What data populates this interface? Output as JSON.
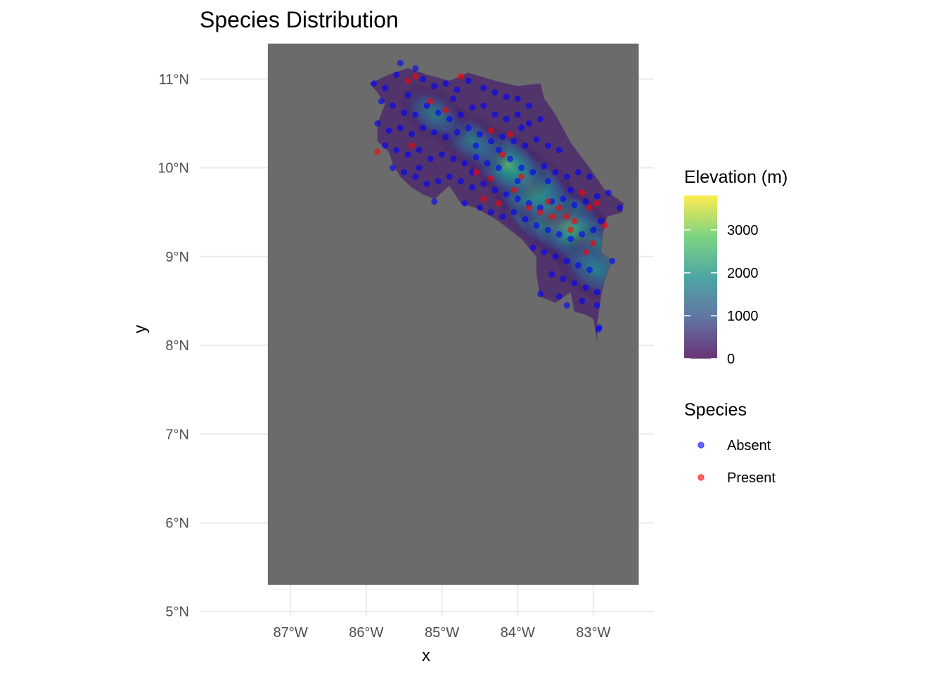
{
  "chart_data": {
    "type": "scatter",
    "title": "Species Distribution",
    "xlabel": "x",
    "ylabel": "y",
    "xlim": [
      -88.2,
      -82.2
    ],
    "ylim": [
      4.95,
      11.4
    ],
    "x_ticks": [
      {
        "value": -87,
        "label": "87°W"
      },
      {
        "value": -86,
        "label": "86°W"
      },
      {
        "value": -85,
        "label": "85°W"
      },
      {
        "value": -84,
        "label": "84°W"
      },
      {
        "value": -83,
        "label": "83°W"
      }
    ],
    "y_ticks": [
      {
        "value": 5,
        "label": "5°N"
      },
      {
        "value": 6,
        "label": "6°N"
      },
      {
        "value": 7,
        "label": "7°N"
      },
      {
        "value": 8,
        "label": "8°N"
      },
      {
        "value": 9,
        "label": "9°N"
      },
      {
        "value": 10,
        "label": "10°N"
      },
      {
        "value": 11,
        "label": "11°N"
      }
    ],
    "raster": {
      "name": "Elevation (m)",
      "extent": {
        "xmin": -87.3,
        "xmax": -82.4,
        "ymin": 5.3,
        "ymax": 11.4
      },
      "na_color": "#6b6b6b",
      "range": [
        0,
        3800
      ],
      "land_outline": [
        [
          -85.95,
          10.95
        ],
        [
          -85.7,
          11.05
        ],
        [
          -85.45,
          11.12
        ],
        [
          -85.2,
          11.05
        ],
        [
          -84.9,
          10.98
        ],
        [
          -84.65,
          11.07
        ],
        [
          -84.3,
          10.98
        ],
        [
          -84.0,
          10.92
        ],
        [
          -83.7,
          10.95
        ],
        [
          -83.65,
          10.78
        ],
        [
          -83.5,
          10.6
        ],
        [
          -83.3,
          10.28
        ],
        [
          -83.05,
          10.0
        ],
        [
          -82.85,
          9.75
        ],
        [
          -82.6,
          9.6
        ],
        [
          -82.62,
          9.5
        ],
        [
          -82.82,
          9.45
        ],
        [
          -82.88,
          9.25
        ],
        [
          -82.9,
          9.05
        ],
        [
          -82.75,
          8.95
        ],
        [
          -82.85,
          8.75
        ],
        [
          -82.9,
          8.55
        ],
        [
          -82.95,
          8.25
        ],
        [
          -82.95,
          8.05
        ],
        [
          -83.0,
          8.3
        ],
        [
          -83.12,
          8.35
        ],
        [
          -83.25,
          8.38
        ],
        [
          -83.3,
          8.6
        ],
        [
          -83.5,
          8.48
        ],
        [
          -83.7,
          8.55
        ],
        [
          -83.75,
          8.8
        ],
        [
          -83.75,
          9.0
        ],
        [
          -83.95,
          9.2
        ],
        [
          -84.25,
          9.4
        ],
        [
          -84.55,
          9.55
        ],
        [
          -84.75,
          9.6
        ],
        [
          -84.9,
          9.8
        ],
        [
          -85.1,
          9.65
        ],
        [
          -85.25,
          9.7
        ],
        [
          -85.4,
          9.78
        ],
        [
          -85.55,
          9.9
        ],
        [
          -85.65,
          10.05
        ],
        [
          -85.7,
          10.18
        ],
        [
          -85.85,
          10.3
        ],
        [
          -85.85,
          10.5
        ],
        [
          -85.75,
          10.72
        ],
        [
          -85.85,
          10.85
        ]
      ],
      "peaks": [
        {
          "x": -83.6,
          "y": 9.5,
          "elev": 3800
        },
        {
          "x": -83.35,
          "y": 9.35,
          "elev": 3400
        },
        {
          "x": -83.1,
          "y": 9.15,
          "elev": 3100
        },
        {
          "x": -83.85,
          "y": 9.8,
          "elev": 3300
        },
        {
          "x": -84.15,
          "y": 10.05,
          "elev": 2600
        },
        {
          "x": -84.6,
          "y": 10.3,
          "elev": 2000
        },
        {
          "x": -85.1,
          "y": 10.6,
          "elev": 1700
        },
        {
          "x": -82.75,
          "y": 8.95,
          "elev": 2700
        },
        {
          "x": -83.0,
          "y": 8.85,
          "elev": 2200
        }
      ]
    },
    "series": [
      {
        "name": "Absent",
        "color": "#0000ff",
        "points": [
          [
            -85.9,
            10.95
          ],
          [
            -85.75,
            10.9
          ],
          [
            -85.6,
            11.05
          ],
          [
            -85.55,
            11.18
          ],
          [
            -85.35,
            11.12
          ],
          [
            -85.25,
            11.0
          ],
          [
            -85.1,
            10.92
          ],
          [
            -84.95,
            10.95
          ],
          [
            -84.8,
            10.88
          ],
          [
            -84.65,
            10.98
          ],
          [
            -84.45,
            10.9
          ],
          [
            -84.3,
            10.85
          ],
          [
            -84.15,
            10.8
          ],
          [
            -84.0,
            10.78
          ],
          [
            -83.85,
            10.7
          ],
          [
            -85.8,
            10.75
          ],
          [
            -85.65,
            10.7
          ],
          [
            -85.5,
            10.62
          ],
          [
            -85.35,
            10.6
          ],
          [
            -85.2,
            10.7
          ],
          [
            -85.05,
            10.62
          ],
          [
            -84.9,
            10.55
          ],
          [
            -84.75,
            10.6
          ],
          [
            -84.6,
            10.68
          ],
          [
            -84.45,
            10.7
          ],
          [
            -84.3,
            10.6
          ],
          [
            -84.15,
            10.55
          ],
          [
            -84.0,
            10.6
          ],
          [
            -83.85,
            10.5
          ],
          [
            -83.7,
            10.55
          ],
          [
            -85.85,
            10.5
          ],
          [
            -85.7,
            10.42
          ],
          [
            -85.55,
            10.45
          ],
          [
            -85.4,
            10.38
          ],
          [
            -85.25,
            10.45
          ],
          [
            -85.1,
            10.4
          ],
          [
            -84.95,
            10.35
          ],
          [
            -84.8,
            10.4
          ],
          [
            -84.65,
            10.45
          ],
          [
            -84.5,
            10.38
          ],
          [
            -84.35,
            10.3
          ],
          [
            -84.2,
            10.35
          ],
          [
            -84.05,
            10.3
          ],
          [
            -83.9,
            10.25
          ],
          [
            -83.75,
            10.32
          ],
          [
            -83.6,
            10.25
          ],
          [
            -83.45,
            10.2
          ],
          [
            -85.75,
            10.25
          ],
          [
            -85.6,
            10.2
          ],
          [
            -85.45,
            10.15
          ],
          [
            -85.3,
            10.2
          ],
          [
            -85.15,
            10.1
          ],
          [
            -85.0,
            10.15
          ],
          [
            -84.85,
            10.1
          ],
          [
            -84.7,
            10.05
          ],
          [
            -84.55,
            10.12
          ],
          [
            -84.4,
            10.05
          ],
          [
            -84.25,
            10.0
          ],
          [
            -84.1,
            10.1
          ],
          [
            -83.95,
            10.0
          ],
          [
            -83.8,
            9.95
          ],
          [
            -83.65,
            10.02
          ],
          [
            -83.5,
            9.95
          ],
          [
            -83.35,
            9.9
          ],
          [
            -83.2,
            9.95
          ],
          [
            -83.05,
            9.9
          ],
          [
            -85.65,
            10.0
          ],
          [
            -85.5,
            9.95
          ],
          [
            -85.35,
            9.9
          ],
          [
            -85.2,
            9.82
          ],
          [
            -85.05,
            9.85
          ],
          [
            -84.9,
            9.9
          ],
          [
            -84.75,
            9.85
          ],
          [
            -84.6,
            9.78
          ],
          [
            -84.45,
            9.82
          ],
          [
            -84.3,
            9.75
          ],
          [
            -84.15,
            9.7
          ],
          [
            -84.0,
            9.65
          ],
          [
            -83.85,
            9.6
          ],
          [
            -83.7,
            9.55
          ],
          [
            -83.55,
            9.62
          ],
          [
            -83.4,
            9.65
          ],
          [
            -83.25,
            9.58
          ],
          [
            -83.1,
            9.62
          ],
          [
            -82.95,
            9.68
          ],
          [
            -82.8,
            9.72
          ],
          [
            -82.65,
            9.55
          ],
          [
            -85.1,
            9.62
          ],
          [
            -84.7,
            9.6
          ],
          [
            -84.5,
            9.55
          ],
          [
            -84.35,
            9.5
          ],
          [
            -84.2,
            9.45
          ],
          [
            -84.05,
            9.5
          ],
          [
            -83.9,
            9.42
          ],
          [
            -83.75,
            9.35
          ],
          [
            -83.6,
            9.3
          ],
          [
            -83.45,
            9.25
          ],
          [
            -83.3,
            9.2
          ],
          [
            -83.15,
            9.25
          ],
          [
            -83.0,
            9.3
          ],
          [
            -82.9,
            9.4
          ],
          [
            -83.8,
            9.1
          ],
          [
            -83.65,
            9.05
          ],
          [
            -83.5,
            9.0
          ],
          [
            -83.35,
            8.95
          ],
          [
            -83.2,
            8.9
          ],
          [
            -83.05,
            8.85
          ],
          [
            -82.75,
            8.95
          ],
          [
            -83.55,
            8.8
          ],
          [
            -83.4,
            8.75
          ],
          [
            -83.25,
            8.7
          ],
          [
            -83.1,
            8.65
          ],
          [
            -82.95,
            8.6
          ],
          [
            -83.7,
            8.58
          ],
          [
            -83.45,
            8.55
          ],
          [
            -83.15,
            8.5
          ],
          [
            -82.95,
            8.45
          ],
          [
            -83.35,
            8.45
          ],
          [
            -82.93,
            8.18
          ],
          [
            -82.92,
            8.2
          ],
          [
            -84.85,
            10.78
          ],
          [
            -85.45,
            10.82
          ],
          [
            -84.55,
            10.25
          ],
          [
            -83.95,
            10.45
          ],
          [
            -84.25,
            10.2
          ],
          [
            -83.6,
            9.85
          ],
          [
            -83.3,
            9.75
          ],
          [
            -84.6,
            9.95
          ],
          [
            -85.3,
            10.0
          ],
          [
            -84.0,
            9.85
          ]
        ]
      },
      {
        "name": "Present",
        "color": "#ff0000",
        "points": [
          [
            -85.45,
            10.98
          ],
          [
            -85.35,
            11.03
          ],
          [
            -84.75,
            11.03
          ],
          [
            -84.95,
            10.65
          ],
          [
            -85.15,
            10.75
          ],
          [
            -84.35,
            10.42
          ],
          [
            -84.1,
            10.38
          ],
          [
            -85.4,
            10.25
          ],
          [
            -85.85,
            10.18
          ],
          [
            -84.55,
            9.95
          ],
          [
            -84.2,
            10.15
          ],
          [
            -84.35,
            9.88
          ],
          [
            -84.05,
            9.75
          ],
          [
            -83.85,
            9.55
          ],
          [
            -83.7,
            9.5
          ],
          [
            -83.6,
            9.62
          ],
          [
            -83.45,
            9.55
          ],
          [
            -83.35,
            9.45
          ],
          [
            -83.25,
            9.4
          ],
          [
            -83.15,
            9.72
          ],
          [
            -83.05,
            9.55
          ],
          [
            -82.95,
            9.6
          ],
          [
            -82.85,
            9.35
          ],
          [
            -83.0,
            9.15
          ],
          [
            -83.1,
            9.05
          ],
          [
            -83.3,
            9.3
          ],
          [
            -84.45,
            9.65
          ],
          [
            -84.25,
            9.6
          ],
          [
            -83.95,
            9.9
          ],
          [
            -83.55,
            9.45
          ]
        ]
      }
    ]
  },
  "legend": {
    "colorbar_title": "Elevation (m)",
    "colorbar_ticks": [
      {
        "value": 0,
        "label": "0"
      },
      {
        "value": 1000,
        "label": "1000"
      },
      {
        "value": 2000,
        "label": "2000"
      },
      {
        "value": 3000,
        "label": "3000"
      }
    ],
    "colorbar_max": 3800,
    "species_title": "Species",
    "species_entries": [
      {
        "label": "Absent",
        "color": "#0000ff"
      },
      {
        "label": "Present",
        "color": "#ff0000"
      }
    ]
  }
}
